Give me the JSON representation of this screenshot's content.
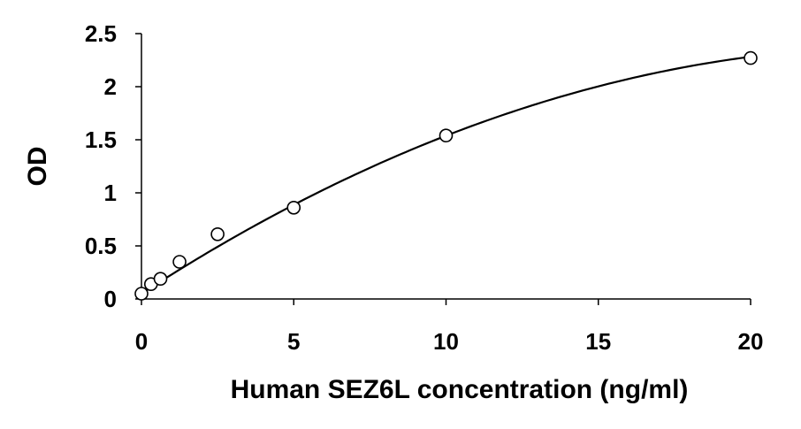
{
  "chart_data": {
    "type": "scatter",
    "title": "",
    "xlabel": "Human SEZ6L concentration (ng/ml)",
    "ylabel": "OD",
    "xlim": [
      0,
      20
    ],
    "ylim": [
      0,
      2.5
    ],
    "xticks": [
      0,
      5,
      10,
      15,
      20
    ],
    "xtick_labels": [
      "0",
      "5",
      "10",
      "15",
      "20"
    ],
    "yticks": [
      0,
      0.5,
      1,
      1.5,
      2,
      2.5
    ],
    "ytick_labels": [
      "0",
      "0.5",
      "1",
      "1.5",
      "2",
      "2.5"
    ],
    "grid": false,
    "legend": "none",
    "series": [
      {
        "marker": "open-circle",
        "x": [
          0,
          0.313,
          0.625,
          1.25,
          2.5,
          5,
          10,
          20
        ],
        "y": [
          0.05,
          0.14,
          0.19,
          0.35,
          0.61,
          0.86,
          1.54,
          2.27
        ]
      }
    ],
    "fit_curve": {
      "type": "polynomial",
      "x_range": [
        0,
        20
      ],
      "coefficients": [
        0.05,
        0.186,
        -0.00372
      ]
    },
    "colors": {
      "marker_fill": "#ffffff",
      "marker_stroke": "#000000",
      "line": "#000000",
      "text": "#000000"
    }
  }
}
